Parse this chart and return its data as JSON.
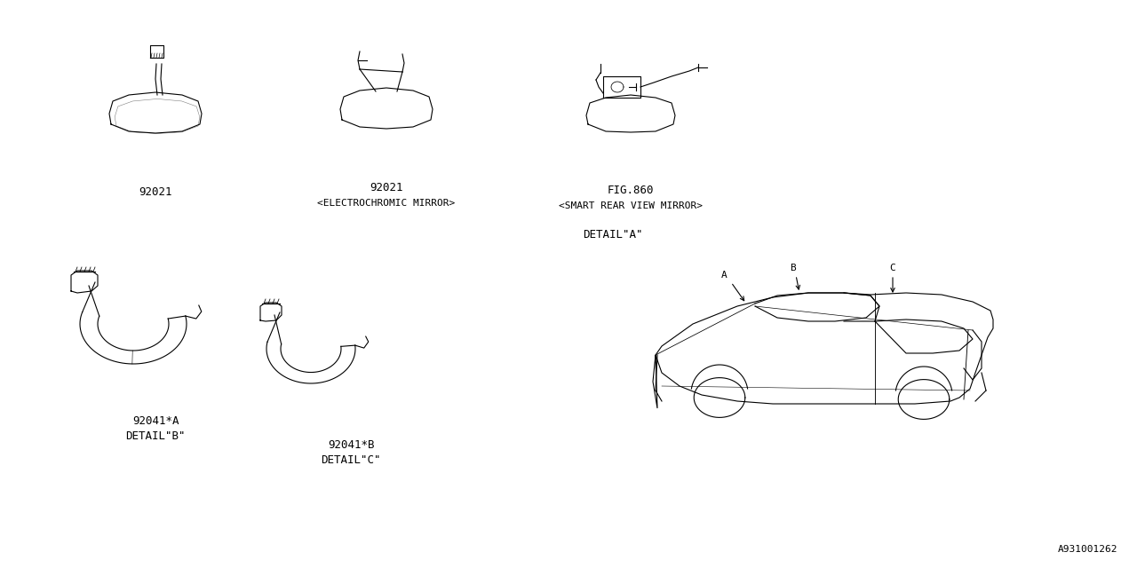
{
  "background_color": "#ffffff",
  "line_color": "#000000",
  "fig_width": 12.8,
  "fig_height": 6.4,
  "dpi": 100,
  "labels": {
    "part1_num": "92021",
    "part2_num": "92021",
    "part2_sub": "<ELECTROCHROMIC MIRROR>",
    "part3_fig": "FIG.860",
    "part3_sub": "<SMART REAR VIEW MIRROR>",
    "part4_num": "92041*A",
    "part4_detail": "DETAIL\"B\"",
    "part5_num": "92041*B",
    "part5_detail": "DETAIL\"C\"",
    "detail_a": "DETAIL\"A\"",
    "label_a": "A",
    "label_b": "B",
    "label_c": "C",
    "diagram_id": "A931001262"
  }
}
